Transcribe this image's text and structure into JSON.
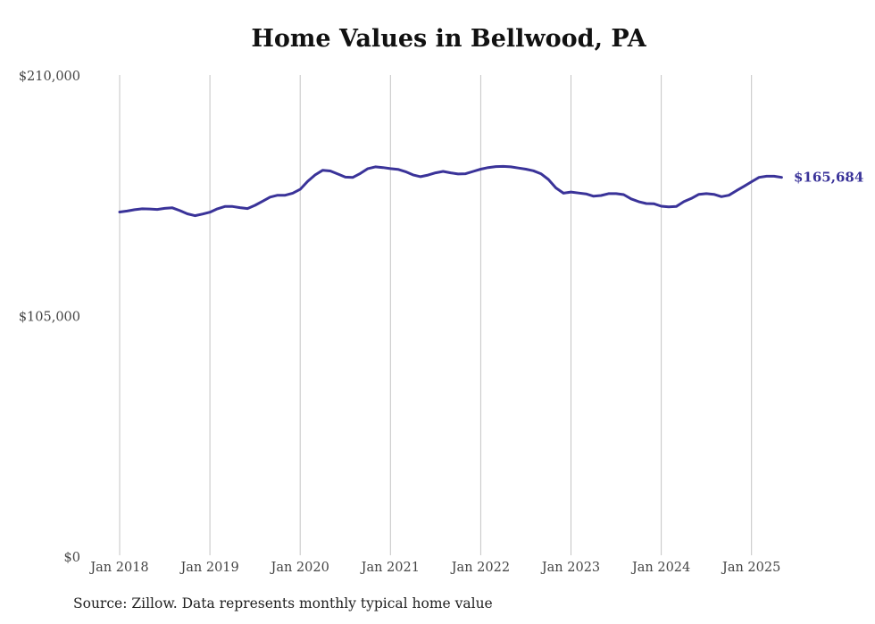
{
  "chart_data": {
    "type": "line",
    "title": "Home Values in Bellwood, PA",
    "xlabel": "",
    "ylabel": "",
    "ylim": [
      0,
      210000
    ],
    "y_ticks": [
      {
        "value": 0,
        "label": "$0"
      },
      {
        "value": 105000,
        "label": "$105,000"
      },
      {
        "value": 210000,
        "label": "$210,000"
      }
    ],
    "x_ticks": [
      "Jan 2018",
      "Jan 2019",
      "Jan 2020",
      "Jan 2021",
      "Jan 2022",
      "Jan 2023",
      "Jan 2024",
      "Jan 2025"
    ],
    "x": [
      "2018-01",
      "2018-02",
      "2018-03",
      "2018-04",
      "2018-05",
      "2018-06",
      "2018-07",
      "2018-08",
      "2018-09",
      "2018-10",
      "2018-11",
      "2018-12",
      "2019-01",
      "2019-02",
      "2019-03",
      "2019-04",
      "2019-05",
      "2019-06",
      "2019-07",
      "2019-08",
      "2019-09",
      "2019-10",
      "2019-11",
      "2019-12",
      "2020-01",
      "2020-02",
      "2020-03",
      "2020-04",
      "2020-05",
      "2020-06",
      "2020-07",
      "2020-08",
      "2020-09",
      "2020-10",
      "2020-11",
      "2020-12",
      "2021-01",
      "2021-02",
      "2021-03",
      "2021-04",
      "2021-05",
      "2021-06",
      "2021-07",
      "2021-08",
      "2021-09",
      "2021-10",
      "2021-11",
      "2021-12",
      "2022-01",
      "2022-02",
      "2022-03",
      "2022-04",
      "2022-05",
      "2022-06",
      "2022-07",
      "2022-08",
      "2022-09",
      "2022-10",
      "2022-11",
      "2022-12",
      "2023-01",
      "2023-02",
      "2023-03",
      "2023-04",
      "2023-05",
      "2023-06",
      "2023-07",
      "2023-08",
      "2023-09",
      "2023-10",
      "2023-11",
      "2023-12",
      "2024-01",
      "2024-02",
      "2024-03",
      "2024-04",
      "2024-05",
      "2024-06",
      "2024-07",
      "2024-08",
      "2024-09",
      "2024-10",
      "2024-11",
      "2024-12",
      "2025-01",
      "2025-02",
      "2025-03",
      "2025-04",
      "2025-05"
    ],
    "series": [
      {
        "color": "#3a3399",
        "values": [
          150600,
          151000,
          151600,
          152000,
          151900,
          151700,
          152200,
          152400,
          151200,
          149800,
          149000,
          149700,
          150500,
          152000,
          153000,
          153000,
          152500,
          152100,
          153500,
          155300,
          157100,
          157900,
          157900,
          158800,
          160500,
          164000,
          166800,
          168800,
          168500,
          167200,
          165800,
          165700,
          167400,
          169500,
          170300,
          170000,
          169500,
          169200,
          168200,
          166800,
          166000,
          166700,
          167700,
          168300,
          167700,
          167200,
          167300,
          168300,
          169300,
          170000,
          170400,
          170500,
          170300,
          169800,
          169300,
          168600,
          167300,
          164800,
          161100,
          158800,
          159300,
          158900,
          158500,
          157500,
          157800,
          158600,
          158600,
          158200,
          156300,
          155100,
          154300,
          154200,
          153100,
          152800,
          153000,
          155100,
          156500,
          158300,
          158600,
          158300,
          157300,
          157900,
          159900,
          161800,
          163800,
          165700,
          166200,
          166200,
          165684
        ]
      }
    ],
    "end_label": "$165,684",
    "grid": {
      "vertical": true,
      "horizontal": false
    },
    "legend": "none"
  },
  "footer": {
    "source": "Source: Zillow. Data represents monthly typical home value"
  }
}
